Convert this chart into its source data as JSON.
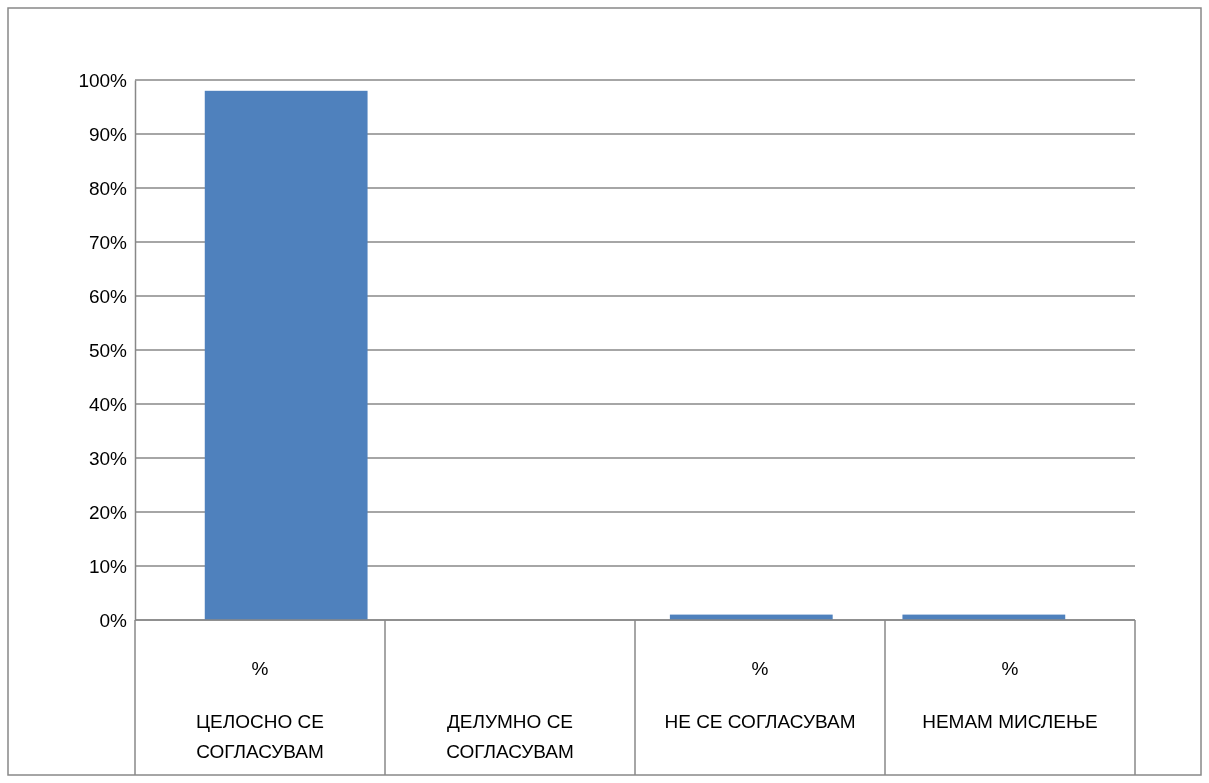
{
  "chart_data": {
    "type": "bar",
    "categories": [
      "ЦЕЛОСНО СЕ СОГЛАСУВАМ",
      "ДЕЛУМНО  СЕ СОГЛАСУВАМ",
      "НЕ СЕ СОГЛАСУВАМ",
      "НЕМАМ МИСЛЕЊЕ"
    ],
    "values": [
      98,
      0,
      1,
      1
    ],
    "color": "#4f81bd",
    "ylim": [
      0,
      100
    ],
    "yticks": [
      {
        "value": 0,
        "label": "0%"
      },
      {
        "value": 10,
        "label": "10%"
      },
      {
        "value": 20,
        "label": "20%"
      },
      {
        "value": 30,
        "label": "30%"
      },
      {
        "value": 40,
        "label": "40%"
      },
      {
        "value": 50,
        "label": "50%"
      },
      {
        "value": 60,
        "label": "60%"
      },
      {
        "value": 70,
        "label": "70%"
      },
      {
        "value": 80,
        "label": "80%"
      },
      {
        "value": 90,
        "label": "90%"
      },
      {
        "value": 100,
        "label": "100%"
      }
    ],
    "grid": "y",
    "annotations": [
      "%",
      "%",
      "%"
    ]
  }
}
